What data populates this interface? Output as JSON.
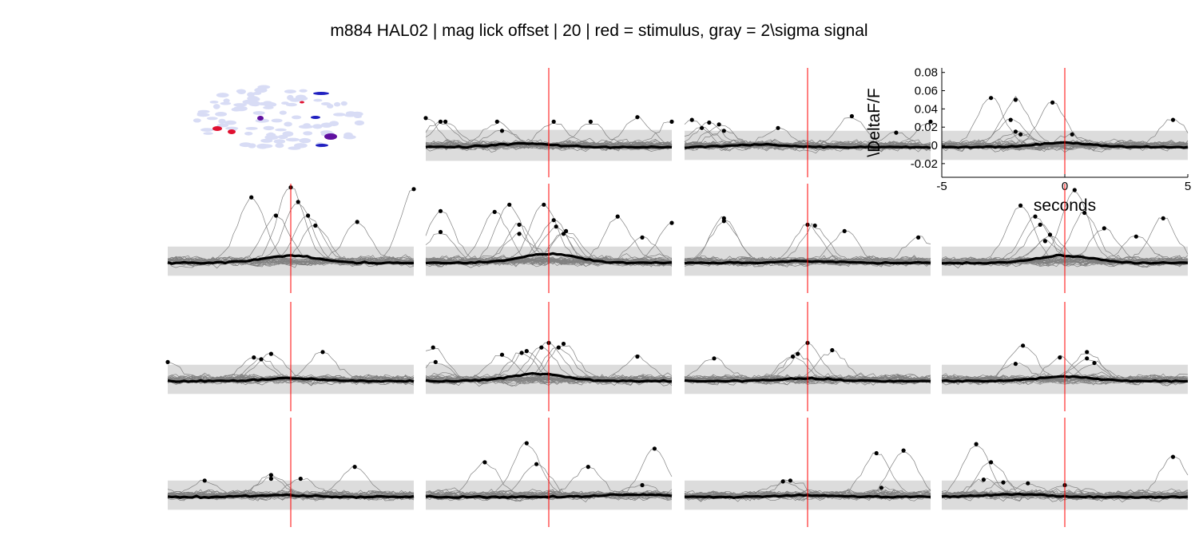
{
  "figure": {
    "title": "m884 HAL02 | mag lick  offset | 20 | red = stimulus, gray = 2\\sigma signal"
  },
  "chart_data": {
    "type": "line",
    "title": "m884 HAL02 | mag lick  offset | 20 | red = stimulus, gray = 2\\sigma signal",
    "layout": "4x4 grid of small multiples; top-left panel is a cell mask image",
    "xlabel": "seconds",
    "ylabel": "\\DeltaF/F",
    "xlim": [
      -5,
      5
    ],
    "ylim": [
      -0.035,
      0.085
    ],
    "x_ticks": [
      "-5",
      "0",
      "5"
    ],
    "y_ticks": [
      "-0.02",
      "0",
      "0.02",
      "0.04",
      "0.06",
      "0.08"
    ],
    "stimulus_time": 0,
    "stimulus_color": "#ff0000",
    "band_color": "#dcdcdc",
    "trace_color": "#808080",
    "mean_color": "#000000",
    "axes_shown_on_panel": 4,
    "panels": [
      {
        "id": 1,
        "kind": "image",
        "description_colors": [
          "#d8dcf5",
          "#2020c0",
          "#6010a0",
          "#e01030"
        ]
      },
      {
        "id": 2,
        "band": 0.017,
        "mean_peak": 0.004,
        "peak_time": -1.0,
        "peaks": [
          [
            -5.0,
            0.03
          ],
          [
            -4.4,
            0.026
          ],
          [
            -4.2,
            0.026
          ],
          [
            -2.1,
            0.026
          ],
          [
            -1.9,
            0.016
          ],
          [
            0.2,
            0.026
          ],
          [
            1.7,
            0.026
          ],
          [
            3.6,
            0.031
          ],
          [
            5.0,
            0.026
          ]
        ]
      },
      {
        "id": 3,
        "band": 0.016,
        "mean_peak": 0.003,
        "peak_time": -2.0,
        "peaks": [
          [
            -4.7,
            0.028
          ],
          [
            -4.3,
            0.019
          ],
          [
            -4.0,
            0.025
          ],
          [
            -3.6,
            0.023
          ],
          [
            -3.4,
            0.016
          ],
          [
            -1.2,
            0.019
          ],
          [
            1.8,
            0.032
          ],
          [
            3.6,
            0.014
          ],
          [
            5.0,
            0.026
          ]
        ]
      },
      {
        "id": 4,
        "band": 0.016,
        "mean_peak": 0.005,
        "peak_time": 0.0,
        "peaks": [
          [
            -3.0,
            0.052
          ],
          [
            -2.0,
            0.05
          ],
          [
            -2.2,
            0.028
          ],
          [
            -2.0,
            0.015
          ],
          [
            -1.8,
            0.012
          ],
          [
            -0.5,
            0.047
          ],
          [
            0.3,
            0.012
          ],
          [
            4.4,
            0.028
          ]
        ]
      },
      {
        "id": 5,
        "band": 0.016,
        "mean_peak": 0.008,
        "peak_time": 0.0,
        "peaks": [
          [
            -1.6,
            0.07
          ],
          [
            -0.6,
            0.05
          ],
          [
            0.0,
            0.081
          ],
          [
            0.3,
            0.065
          ],
          [
            0.7,
            0.05
          ],
          [
            1.0,
            0.039
          ],
          [
            2.7,
            0.043
          ],
          [
            5.0,
            0.079
          ]
        ]
      },
      {
        "id": 6,
        "band": 0.016,
        "mean_peak": 0.01,
        "peak_time": 0.0,
        "peaks": [
          [
            -4.4,
            0.055
          ],
          [
            -4.4,
            0.032
          ],
          [
            -2.2,
            0.054
          ],
          [
            -1.6,
            0.062
          ],
          [
            -1.2,
            0.04
          ],
          [
            -1.2,
            0.03
          ],
          [
            -0.2,
            0.062
          ],
          [
            0.2,
            0.045
          ],
          [
            0.3,
            0.038
          ],
          [
            0.6,
            0.03
          ],
          [
            0.7,
            0.033
          ],
          [
            2.8,
            0.049
          ],
          [
            3.8,
            0.026
          ],
          [
            5.0,
            0.042
          ]
        ]
      },
      {
        "id": 7,
        "band": 0.016,
        "mean_peak": 0.002,
        "peak_time": 0.0,
        "peaks": [
          [
            -3.4,
            0.047
          ],
          [
            -3.4,
            0.044
          ],
          [
            0.0,
            0.04
          ],
          [
            0.3,
            0.039
          ],
          [
            1.5,
            0.033
          ],
          [
            4.5,
            0.026
          ]
        ]
      },
      {
        "id": 8,
        "band": 0.016,
        "mean_peak": 0.008,
        "peak_time": 0.0,
        "peaks": [
          [
            -1.8,
            0.061
          ],
          [
            -1.2,
            0.049
          ],
          [
            -1.0,
            0.04
          ],
          [
            -0.8,
            0.022
          ],
          [
            -0.6,
            0.029
          ],
          [
            0.4,
            0.078
          ],
          [
            0.8,
            0.053
          ],
          [
            1.6,
            0.036
          ],
          [
            2.9,
            0.027
          ],
          [
            4.0,
            0.047
          ]
        ]
      },
      {
        "id": 9,
        "band": 0.016,
        "mean_peak": 0.003,
        "peak_time": 0.0,
        "peaks": [
          [
            -5.0,
            0.019
          ],
          [
            -1.5,
            0.024
          ],
          [
            -1.2,
            0.022
          ],
          [
            -0.8,
            0.028
          ],
          [
            1.3,
            0.03
          ]
        ]
      },
      {
        "id": 10,
        "band": 0.016,
        "mean_peak": 0.008,
        "peak_time": -0.5,
        "peaks": [
          [
            -4.7,
            0.035
          ],
          [
            -4.6,
            0.019
          ],
          [
            -1.9,
            0.027
          ],
          [
            -1.1,
            0.029
          ],
          [
            -0.9,
            0.031
          ],
          [
            -0.3,
            0.035
          ],
          [
            0.0,
            0.04
          ],
          [
            0.4,
            0.035
          ],
          [
            0.6,
            0.039
          ],
          [
            3.6,
            0.025
          ]
        ]
      },
      {
        "id": 11,
        "band": 0.016,
        "mean_peak": 0.003,
        "peak_time": 0.0,
        "peaks": [
          [
            -3.8,
            0.023
          ],
          [
            -0.6,
            0.025
          ],
          [
            -0.4,
            0.028
          ],
          [
            0.0,
            0.04
          ],
          [
            1.0,
            0.032
          ]
        ]
      },
      {
        "id": 12,
        "band": 0.016,
        "mean_peak": 0.005,
        "peak_time": 0.0,
        "peaks": [
          [
            -2.0,
            0.017
          ],
          [
            -1.7,
            0.037
          ],
          [
            -0.2,
            0.024
          ],
          [
            0.9,
            0.03
          ],
          [
            0.9,
            0.023
          ],
          [
            1.2,
            0.018
          ]
        ]
      },
      {
        "id": 13,
        "band": 0.016,
        "mean_peak": 0.002,
        "peak_time": -0.5,
        "peaks": [
          [
            -3.5,
            0.016
          ],
          [
            -0.8,
            0.022
          ],
          [
            -0.8,
            0.018
          ],
          [
            0.4,
            0.018
          ],
          [
            2.6,
            0.031
          ]
        ]
      },
      {
        "id": 14,
        "band": 0.016,
        "mean_peak": 0.003,
        "peak_time": 3.5,
        "peaks": [
          [
            -2.6,
            0.036
          ],
          [
            -0.9,
            0.057
          ],
          [
            -0.5,
            0.034
          ],
          [
            1.6,
            0.031
          ],
          [
            3.8,
            0.011
          ],
          [
            4.3,
            0.051
          ]
        ]
      },
      {
        "id": 15,
        "band": 0.016,
        "mean_peak": 0.002,
        "peak_time": 0.0,
        "peaks": [
          [
            -1.0,
            0.015
          ],
          [
            -0.7,
            0.016
          ],
          [
            2.8,
            0.046
          ],
          [
            3.0,
            0.008
          ],
          [
            3.9,
            0.049
          ]
        ]
      },
      {
        "id": 16,
        "band": 0.016,
        "mean_peak": 0.003,
        "peak_time": -2.0,
        "peaks": [
          [
            -3.6,
            0.056
          ],
          [
            -3.0,
            0.036
          ],
          [
            -3.3,
            0.017
          ],
          [
            -2.5,
            0.014
          ],
          [
            -1.5,
            0.013
          ],
          [
            0.0,
            0.011
          ],
          [
            4.4,
            0.042
          ]
        ]
      }
    ]
  }
}
